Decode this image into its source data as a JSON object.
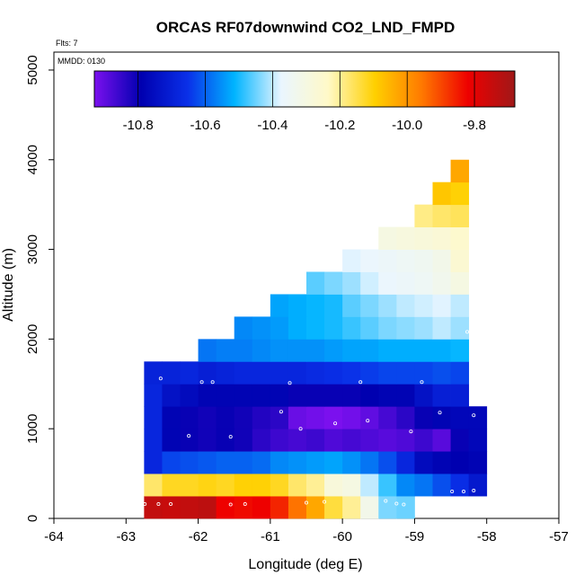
{
  "chart_data": {
    "type": "heatmap",
    "title": "ORCAS RF07downwind CO2_LND_FMPD",
    "xlabel": "Longitude (deg E)",
    "ylabel": "Altitude (m)",
    "xlim": [
      -64,
      -57
    ],
    "ylim": [
      0,
      5200
    ],
    "x_ticks": [
      -64,
      -63,
      -62,
      -61,
      -60,
      -59,
      -58,
      -57
    ],
    "y_ticks": [
      0,
      1000,
      2000,
      3000,
      4000,
      5000
    ],
    "annotations": {
      "flights": "Flts: 7",
      "date": "MMDD: 0130"
    },
    "colorbar": {
      "vmin": -10.93,
      "vmax": -9.68,
      "ticks": [
        -10.8,
        -10.6,
        -10.4,
        -10.2,
        -10.0,
        -9.8
      ],
      "tick_labels": [
        "-10.8",
        "-10.6",
        "-10.4",
        "-10.2",
        "-10.0",
        "-9.8"
      ],
      "color_stops": [
        "#7b10ee",
        "#0000b0",
        "#0a30e8",
        "#00b4ff",
        "#eaf6ff",
        "#fff9c8",
        "#ffd000",
        "#ff7a00",
        "#ee0000",
        "#a01818"
      ]
    },
    "cell_width_lon": 0.25,
    "cell_height_alt": 250,
    "rows": [
      {
        "alt": [
          0,
          250
        ],
        "cells": [
          {
            "lon": -62.75,
            "value": -9.74
          },
          {
            "lon": -62.5,
            "value": -9.75
          },
          {
            "lon": -62.25,
            "value": -9.74
          },
          {
            "lon": -62.0,
            "value": -9.73
          },
          {
            "lon": -61.75,
            "value": -9.82
          },
          {
            "lon": -61.5,
            "value": -9.83
          },
          {
            "lon": -61.25,
            "value": -9.82
          },
          {
            "lon": -61.0,
            "value": -9.86
          },
          {
            "lon": -60.75,
            "value": -9.95
          },
          {
            "lon": -60.5,
            "value": -10.03
          },
          {
            "lon": -60.25,
            "value": -10.14
          },
          {
            "lon": -60.0,
            "value": -10.2
          },
          {
            "lon": -59.75,
            "value": -10.32
          },
          {
            "lon": -59.5,
            "value": -10.44
          },
          {
            "lon": -59.25,
            "value": -10.45
          }
        ]
      },
      {
        "alt": [
          250,
          500
        ],
        "cells": [
          {
            "lon": -62.75,
            "value": -10.17
          },
          {
            "lon": -62.5,
            "value": -10.12
          },
          {
            "lon": -62.25,
            "value": -10.12
          },
          {
            "lon": -62.0,
            "value": -10.11
          },
          {
            "lon": -61.75,
            "value": -10.12
          },
          {
            "lon": -61.5,
            "value": -10.1
          },
          {
            "lon": -61.25,
            "value": -10.1
          },
          {
            "lon": -61.0,
            "value": -10.12
          },
          {
            "lon": -60.75,
            "value": -10.17
          },
          {
            "lon": -60.5,
            "value": -10.2
          },
          {
            "lon": -60.25,
            "value": -10.28
          },
          {
            "lon": -60.0,
            "value": -10.3
          },
          {
            "lon": -59.75,
            "value": -10.4
          },
          {
            "lon": -59.5,
            "value": -10.48
          },
          {
            "lon": -59.25,
            "value": -10.56
          },
          {
            "lon": -59.0,
            "value": -10.58
          },
          {
            "lon": -58.75,
            "value": -10.62
          },
          {
            "lon": -58.5,
            "value": -10.66
          },
          {
            "lon": -58.25,
            "value": -10.72
          }
        ]
      },
      {
        "alt": [
          500,
          750
        ],
        "cells": [
          {
            "lon": -62.75,
            "value": -10.68
          },
          {
            "lon": -62.5,
            "value": -10.63
          },
          {
            "lon": -62.25,
            "value": -10.62
          },
          {
            "lon": -62.0,
            "value": -10.61
          },
          {
            "lon": -61.75,
            "value": -10.6
          },
          {
            "lon": -61.5,
            "value": -10.6
          },
          {
            "lon": -61.25,
            "value": -10.59
          },
          {
            "lon": -61.0,
            "value": -10.56
          },
          {
            "lon": -60.75,
            "value": -10.55
          },
          {
            "lon": -60.5,
            "value": -10.54
          },
          {
            "lon": -60.25,
            "value": -10.53
          },
          {
            "lon": -60.0,
            "value": -10.55
          },
          {
            "lon": -59.75,
            "value": -10.58
          },
          {
            "lon": -59.5,
            "value": -10.62
          },
          {
            "lon": -59.25,
            "value": -10.68
          },
          {
            "lon": -59.0,
            "value": -10.76
          },
          {
            "lon": -58.75,
            "value": -10.78
          },
          {
            "lon": -58.5,
            "value": -10.79
          },
          {
            "lon": -58.25,
            "value": -10.78
          }
        ]
      },
      {
        "alt": [
          750,
          1000
        ],
        "cells": [
          {
            "lon": -62.75,
            "value": -10.68
          },
          {
            "lon": -62.5,
            "value": -10.78
          },
          {
            "lon": -62.25,
            "value": -10.8
          },
          {
            "lon": -62.0,
            "value": -10.81
          },
          {
            "lon": -61.75,
            "value": -10.8
          },
          {
            "lon": -61.5,
            "value": -10.81
          },
          {
            "lon": -61.25,
            "value": -10.84
          },
          {
            "lon": -61.0,
            "value": -10.86
          },
          {
            "lon": -60.75,
            "value": -10.87
          },
          {
            "lon": -60.5,
            "value": -10.86
          },
          {
            "lon": -60.25,
            "value": -10.88
          },
          {
            "lon": -60.0,
            "value": -10.87
          },
          {
            "lon": -59.75,
            "value": -10.88
          },
          {
            "lon": -59.5,
            "value": -10.89
          },
          {
            "lon": -59.25,
            "value": -10.88
          },
          {
            "lon": -59.0,
            "value": -10.86
          },
          {
            "lon": -58.75,
            "value": -10.89
          },
          {
            "lon": -58.5,
            "value": -10.8
          },
          {
            "lon": -58.25,
            "value": -10.77
          }
        ]
      },
      {
        "alt": [
          1000,
          1250
        ],
        "cells": [
          {
            "lon": -62.75,
            "value": -10.68
          },
          {
            "lon": -62.5,
            "value": -10.78
          },
          {
            "lon": -62.25,
            "value": -10.8
          },
          {
            "lon": -62.0,
            "value": -10.81
          },
          {
            "lon": -61.75,
            "value": -10.8
          },
          {
            "lon": -61.5,
            "value": -10.81
          },
          {
            "lon": -61.25,
            "value": -10.83
          },
          {
            "lon": -61.0,
            "value": -10.84
          },
          {
            "lon": -60.75,
            "value": -10.91
          },
          {
            "lon": -60.5,
            "value": -10.92
          },
          {
            "lon": -60.25,
            "value": -10.93
          },
          {
            "lon": -60.0,
            "value": -10.92
          },
          {
            "lon": -59.75,
            "value": -10.9
          },
          {
            "lon": -59.5,
            "value": -10.87
          },
          {
            "lon": -59.25,
            "value": -10.84
          },
          {
            "lon": -59.0,
            "value": -10.8
          },
          {
            "lon": -58.75,
            "value": -10.78
          },
          {
            "lon": -58.5,
            "value": -10.77
          },
          {
            "lon": -58.25,
            "value": -10.77
          }
        ]
      },
      {
        "alt": [
          1250,
          1500
        ],
        "cells": [
          {
            "lon": -62.75,
            "value": -10.68
          },
          {
            "lon": -62.5,
            "value": -10.74
          },
          {
            "lon": -62.25,
            "value": -10.76
          },
          {
            "lon": -62.0,
            "value": -10.78
          },
          {
            "lon": -61.75,
            "value": -10.78
          },
          {
            "lon": -61.5,
            "value": -10.78
          },
          {
            "lon": -61.25,
            "value": -10.78
          },
          {
            "lon": -61.0,
            "value": -10.78
          },
          {
            "lon": -60.75,
            "value": -10.8
          },
          {
            "lon": -60.5,
            "value": -10.8
          },
          {
            "lon": -60.25,
            "value": -10.8
          },
          {
            "lon": -60.0,
            "value": -10.8
          },
          {
            "lon": -59.75,
            "value": -10.79
          },
          {
            "lon": -59.5,
            "value": -10.78
          },
          {
            "lon": -59.25,
            "value": -10.78
          },
          {
            "lon": -59.0,
            "value": -10.74
          },
          {
            "lon": -58.75,
            "value": -10.7
          },
          {
            "lon": -58.5,
            "value": -10.7
          }
        ]
      },
      {
        "alt": [
          1500,
          1750
        ],
        "cells": [
          {
            "lon": -62.75,
            "value": -10.69
          },
          {
            "lon": -62.5,
            "value": -10.69
          },
          {
            "lon": -62.25,
            "value": -10.68
          },
          {
            "lon": -62.0,
            "value": -10.7
          },
          {
            "lon": -61.75,
            "value": -10.69
          },
          {
            "lon": -61.5,
            "value": -10.68
          },
          {
            "lon": -61.25,
            "value": -10.68
          },
          {
            "lon": -61.0,
            "value": -10.68
          },
          {
            "lon": -60.75,
            "value": -10.68
          },
          {
            "lon": -60.5,
            "value": -10.67
          },
          {
            "lon": -60.25,
            "value": -10.66
          },
          {
            "lon": -60.0,
            "value": -10.65
          },
          {
            "lon": -59.75,
            "value": -10.64
          },
          {
            "lon": -59.5,
            "value": -10.63
          },
          {
            "lon": -59.25,
            "value": -10.63
          },
          {
            "lon": -59.0,
            "value": -10.63
          },
          {
            "lon": -58.75,
            "value": -10.62
          },
          {
            "lon": -58.5,
            "value": -10.63
          }
        ]
      },
      {
        "alt": [
          1750,
          2000
        ],
        "cells": [
          {
            "lon": -62.0,
            "value": -10.58
          },
          {
            "lon": -61.75,
            "value": -10.57
          },
          {
            "lon": -61.5,
            "value": -10.57
          },
          {
            "lon": -61.25,
            "value": -10.56
          },
          {
            "lon": -61.0,
            "value": -10.55
          },
          {
            "lon": -60.75,
            "value": -10.55
          },
          {
            "lon": -60.5,
            "value": -10.55
          },
          {
            "lon": -60.25,
            "value": -10.54
          },
          {
            "lon": -60.0,
            "value": -10.53
          },
          {
            "lon": -59.75,
            "value": -10.53
          },
          {
            "lon": -59.5,
            "value": -10.52
          },
          {
            "lon": -59.25,
            "value": -10.52
          },
          {
            "lon": -59.0,
            "value": -10.52
          },
          {
            "lon": -58.75,
            "value": -10.52
          },
          {
            "lon": -58.5,
            "value": -10.51
          }
        ]
      },
      {
        "alt": [
          2000,
          2250
        ],
        "cells": [
          {
            "lon": -61.5,
            "value": -10.56
          },
          {
            "lon": -61.25,
            "value": -10.55
          },
          {
            "lon": -61.0,
            "value": -10.54
          },
          {
            "lon": -60.75,
            "value": -10.52
          },
          {
            "lon": -60.5,
            "value": -10.51
          },
          {
            "lon": -60.25,
            "value": -10.5
          },
          {
            "lon": -60.0,
            "value": -10.48
          },
          {
            "lon": -59.75,
            "value": -10.46
          },
          {
            "lon": -59.5,
            "value": -10.44
          },
          {
            "lon": -59.25,
            "value": -10.43
          },
          {
            "lon": -59.0,
            "value": -10.42
          },
          {
            "lon": -58.75,
            "value": -10.4
          },
          {
            "lon": -58.5,
            "value": -10.42
          }
        ]
      },
      {
        "alt": [
          2250,
          2500
        ],
        "cells": [
          {
            "lon": -61.0,
            "value": -10.53
          },
          {
            "lon": -60.75,
            "value": -10.52
          },
          {
            "lon": -60.5,
            "value": -10.51
          },
          {
            "lon": -60.25,
            "value": -10.5
          },
          {
            "lon": -60.0,
            "value": -10.46
          },
          {
            "lon": -59.75,
            "value": -10.44
          },
          {
            "lon": -59.5,
            "value": -10.42
          },
          {
            "lon": -59.25,
            "value": -10.4
          },
          {
            "lon": -59.0,
            "value": -10.39
          },
          {
            "lon": -58.75,
            "value": -10.38
          },
          {
            "lon": -58.5,
            "value": -10.4
          }
        ]
      },
      {
        "alt": [
          2500,
          2750
        ],
        "cells": [
          {
            "lon": -60.5,
            "value": -10.46
          },
          {
            "lon": -60.25,
            "value": -10.44
          },
          {
            "lon": -60.0,
            "value": -10.42
          },
          {
            "lon": -59.75,
            "value": -10.39
          },
          {
            "lon": -59.5,
            "value": -10.37
          },
          {
            "lon": -59.25,
            "value": -10.36
          },
          {
            "lon": -59.0,
            "value": -10.35
          },
          {
            "lon": -58.75,
            "value": -10.33
          },
          {
            "lon": -58.5,
            "value": -10.3
          }
        ]
      },
      {
        "alt": [
          2750,
          3000
        ],
        "cells": [
          {
            "lon": -60.0,
            "value": -10.38
          },
          {
            "lon": -59.75,
            "value": -10.37
          },
          {
            "lon": -59.5,
            "value": -10.36
          },
          {
            "lon": -59.25,
            "value": -10.35
          },
          {
            "lon": -59.0,
            "value": -10.34
          },
          {
            "lon": -58.75,
            "value": -10.32
          },
          {
            "lon": -58.5,
            "value": -10.26
          }
        ]
      },
      {
        "alt": [
          3000,
          3250
        ],
        "cells": [
          {
            "lon": -59.5,
            "value": -10.3
          },
          {
            "lon": -59.25,
            "value": -10.29
          },
          {
            "lon": -59.0,
            "value": -10.28
          },
          {
            "lon": -58.75,
            "value": -10.27
          },
          {
            "lon": -58.5,
            "value": -10.25
          }
        ]
      },
      {
        "alt": [
          3250,
          3500
        ],
        "cells": [
          {
            "lon": -59.0,
            "value": -10.19
          },
          {
            "lon": -58.75,
            "value": -10.17
          },
          {
            "lon": -58.5,
            "value": -10.16
          }
        ]
      },
      {
        "alt": [
          3500,
          3750
        ],
        "cells": [
          {
            "lon": -58.75,
            "value": -10.08
          },
          {
            "lon": -58.5,
            "value": -10.1
          }
        ]
      },
      {
        "alt": [
          3750,
          4000
        ],
        "cells": [
          {
            "lon": -58.5,
            "value": -10.03
          }
        ]
      }
    ],
    "sample_points": [
      {
        "lon": -62.74,
        "alt": 160
      },
      {
        "lon": -62.55,
        "alt": 160
      },
      {
        "lon": -62.38,
        "alt": 160
      },
      {
        "lon": -61.55,
        "alt": 155
      },
      {
        "lon": -61.35,
        "alt": 160
      },
      {
        "lon": -60.5,
        "alt": 175
      },
      {
        "lon": -60.25,
        "alt": 185
      },
      {
        "lon": -59.4,
        "alt": 195
      },
      {
        "lon": -59.25,
        "alt": 165
      },
      {
        "lon": -59.15,
        "alt": 155
      },
      {
        "lon": -58.48,
        "alt": 300
      },
      {
        "lon": -58.32,
        "alt": 300
      },
      {
        "lon": -58.18,
        "alt": 310
      },
      {
        "lon": -62.78,
        "alt": 630
      },
      {
        "lon": -62.13,
        "alt": 920
      },
      {
        "lon": -61.55,
        "alt": 910
      },
      {
        "lon": -60.85,
        "alt": 1190
      },
      {
        "lon": -60.58,
        "alt": 1000
      },
      {
        "lon": -60.1,
        "alt": 1060
      },
      {
        "lon": -59.65,
        "alt": 1090
      },
      {
        "lon": -59.05,
        "alt": 970
      },
      {
        "lon": -58.65,
        "alt": 1180
      },
      {
        "lon": -58.18,
        "alt": 1150
      },
      {
        "lon": -62.52,
        "alt": 1560
      },
      {
        "lon": -61.95,
        "alt": 1520
      },
      {
        "lon": -61.8,
        "alt": 1520
      },
      {
        "lon": -60.73,
        "alt": 1510
      },
      {
        "lon": -59.75,
        "alt": 1520
      },
      {
        "lon": -58.9,
        "alt": 1520
      },
      {
        "lon": -58.27,
        "alt": 2080
      },
      {
        "lon": -58.62,
        "alt": 3960
      }
    ]
  }
}
